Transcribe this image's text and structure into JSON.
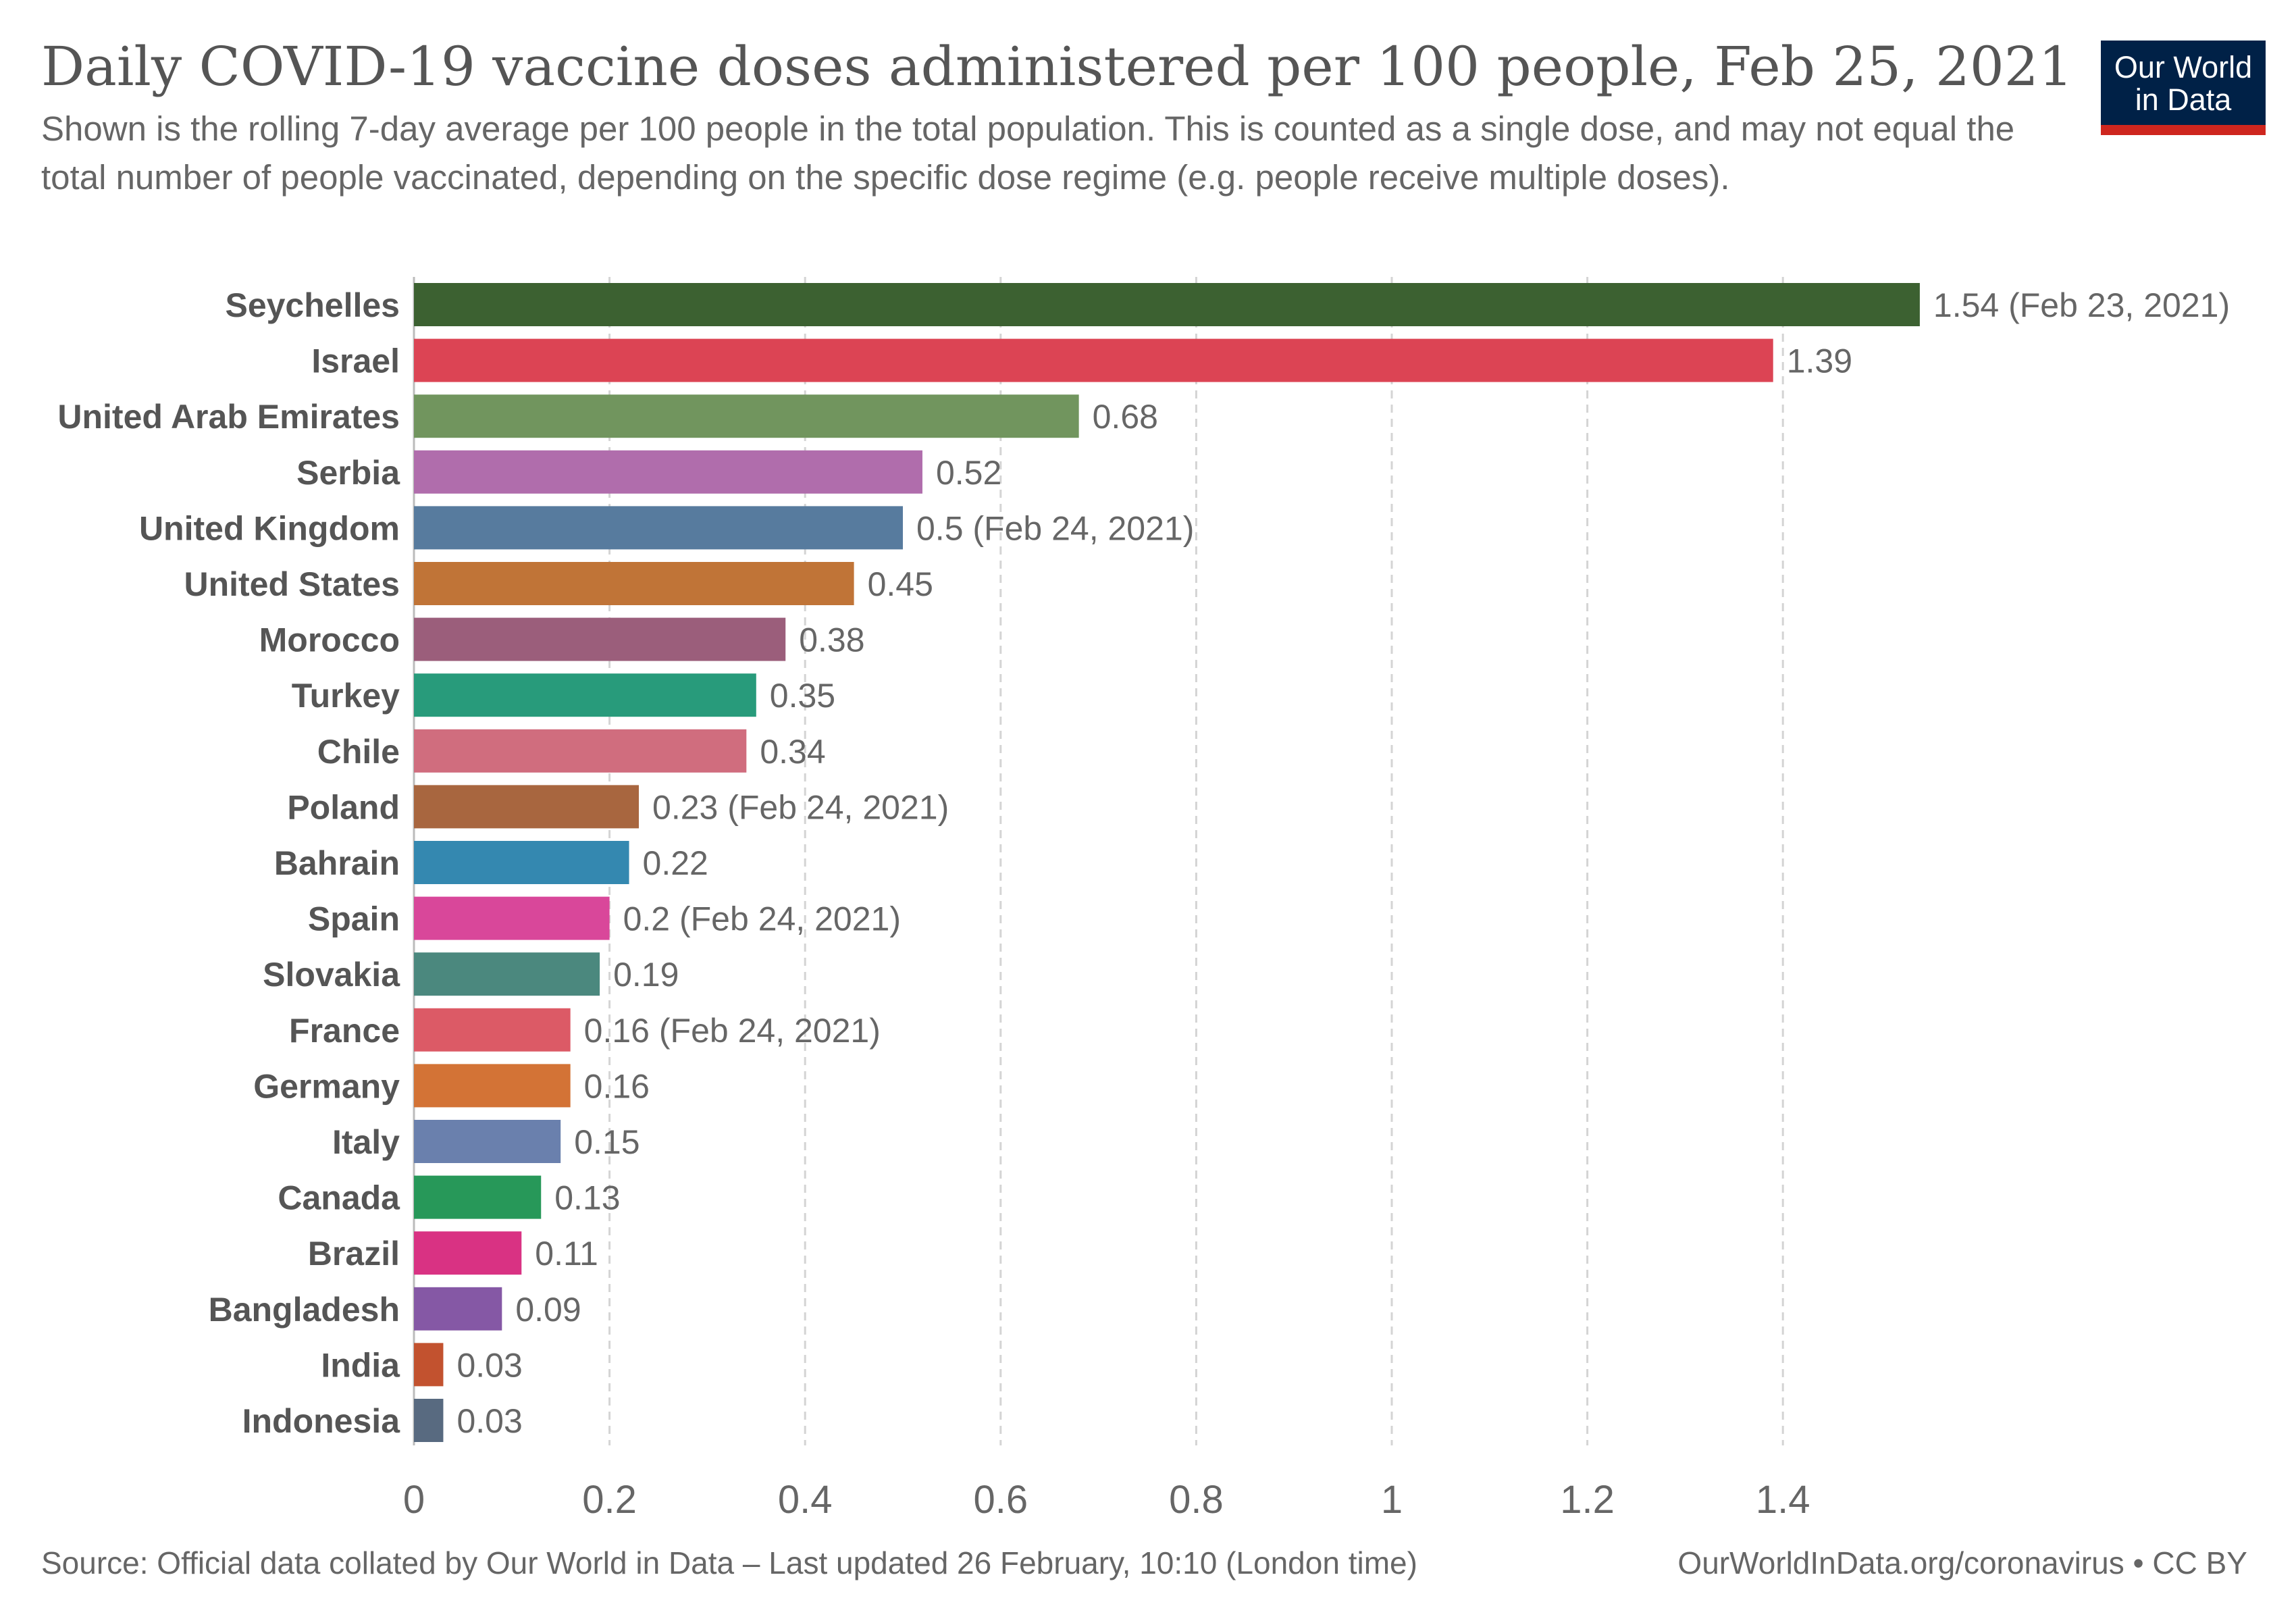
{
  "header": {
    "title": "Daily COVID-19 vaccine doses administered per 100 people, Feb 25, 2021",
    "subtitle": "Shown is the rolling 7-day average per 100 people in the total population. This is counted as a single dose, and may not equal the total number of people vaccinated, depending on the specific dose regime (e.g. people receive multiple doses)."
  },
  "logo": {
    "line1": "Our World",
    "line2": "in Data",
    "bg_color": "#002147",
    "accent_color": "#ce261e"
  },
  "footer": {
    "source": "Source: Official data collated by Our World in Data – Last updated 26 February, 10:10 (London time)",
    "link": "OurWorldInData.org/coronavirus • CC BY"
  },
  "chart_data": {
    "type": "bar",
    "orientation": "horizontal",
    "title": "Daily COVID-19 vaccine doses administered per 100 people, Feb 25, 2021",
    "xlim": [
      0,
      1.54
    ],
    "xticks": [
      0,
      0.2,
      0.4,
      0.6,
      0.8,
      1,
      1.2,
      1.4
    ],
    "xtick_labels": [
      "0",
      "0.2",
      "0.4",
      "0.6",
      "0.8",
      "1",
      "1.2",
      "1.4"
    ],
    "grid": "vertical-dashed",
    "categories": [
      "Seychelles",
      "Israel",
      "United Arab Emirates",
      "Serbia",
      "United Kingdom",
      "United States",
      "Morocco",
      "Turkey",
      "Chile",
      "Poland",
      "Bahrain",
      "Spain",
      "Slovakia",
      "France",
      "Germany",
      "Italy",
      "Canada",
      "Brazil",
      "Bangladesh",
      "India",
      "Indonesia"
    ],
    "values": [
      1.54,
      1.39,
      0.68,
      0.52,
      0.5,
      0.45,
      0.38,
      0.35,
      0.34,
      0.23,
      0.22,
      0.2,
      0.19,
      0.16,
      0.16,
      0.15,
      0.13,
      0.11,
      0.09,
      0.03,
      0.03
    ],
    "value_labels": [
      "1.54 (Feb 23, 2021)",
      "1.39",
      "0.68",
      "0.52",
      "0.5 (Feb 24, 2021)",
      "0.45",
      "0.38",
      "0.35",
      "0.34",
      "0.23 (Feb 24, 2021)",
      "0.22",
      "0.2 (Feb 24, 2021)",
      "0.19",
      "0.16 (Feb 24, 2021)",
      "0.16",
      "0.15",
      "0.13",
      "0.11",
      "0.09",
      "0.03",
      "0.03"
    ],
    "colors": [
      "#3c6131",
      "#dc4454",
      "#71955e",
      "#b06dac",
      "#577b9e",
      "#c07437",
      "#9b5e7b",
      "#289b7b",
      "#d06d7e",
      "#a8663f",
      "#3488b0",
      "#d9479a",
      "#4b887e",
      "#dc5a66",
      "#d37336",
      "#6a80ad",
      "#279859",
      "#d93283",
      "#8558a5",
      "#c2522f",
      "#586a80"
    ]
  }
}
